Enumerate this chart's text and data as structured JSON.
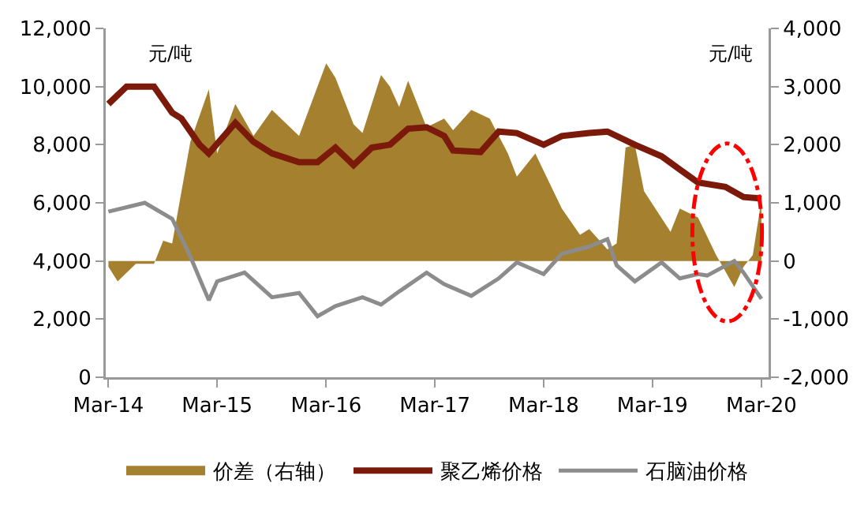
{
  "chart_data": {
    "type": "line",
    "ylabel": "元/吨",
    "y2label": "元/吨",
    "xlim": [
      "2014-02-20",
      "2020-03-25"
    ],
    "xticks": [
      {
        "value": "2014-03",
        "label": "Mar-14"
      },
      {
        "value": "2015-03",
        "label": "Mar-15"
      },
      {
        "value": "2016-03",
        "label": "Mar-16"
      },
      {
        "value": "2017-03",
        "label": "Mar-17"
      },
      {
        "value": "2018-03",
        "label": "Mar-18"
      },
      {
        "value": "2019-03",
        "label": "Mar-19"
      },
      {
        "value": "2020-03",
        "label": "Mar-20"
      }
    ],
    "ylim": [
      0,
      12000
    ],
    "yticks": [
      0,
      {
        "value": 2000,
        "label": "2,000"
      },
      {
        "value": 4000,
        "label": "4,000"
      },
      {
        "value": 6000,
        "label": "6,000"
      },
      {
        "value": 8000,
        "label": "8,000"
      },
      {
        "value": 10000,
        "label": "10,000"
      },
      {
        "value": 12000,
        "label": "12,000"
      }
    ],
    "y2lim": [
      -2000,
      4000
    ],
    "y2ticks": [
      {
        "value": -2000,
        "label": "-2,000"
      },
      {
        "value": -1000,
        "label": "-1,000"
      },
      0,
      {
        "value": 1000,
        "label": "1,000"
      },
      {
        "value": 2000,
        "label": "2,000"
      },
      {
        "value": 3000,
        "label": "3,000"
      },
      {
        "value": 4000,
        "label": "4,000"
      }
    ],
    "grid": false,
    "legend": "bottom",
    "series": [
      {
        "name": "价差（右轴）",
        "type": "area",
        "axis": "y2",
        "color": "#a5812f",
        "x": [
          "2014-03",
          "2014-04",
          "2014-06",
          "2014-08",
          "2014-09",
          "2014-10",
          "2014-12",
          "2015-02",
          "2015-03",
          "2015-05",
          "2015-07",
          "2015-09",
          "2015-12",
          "2016-03",
          "2016-04",
          "2016-06",
          "2016-07",
          "2016-09",
          "2016-10",
          "2016-11",
          "2016-12",
          "2017-01",
          "2017-02",
          "2017-04",
          "2017-05",
          "2017-07",
          "2017-09",
          "2017-11",
          "2017-12",
          "2018-02",
          "2018-05",
          "2018-07",
          "2018-08",
          "2018-10",
          "2018-11",
          "2018-12",
          "2019-01",
          "2019-02",
          "2019-05",
          "2019-06",
          "2019-08",
          "2019-10",
          "2019-12",
          "2020-01",
          "2020-02",
          "2020-03"
        ],
        "values": [
          -100,
          -350,
          -50,
          -50,
          350,
          300,
          2050,
          2950,
          1850,
          2700,
          2150,
          2600,
          2150,
          3400,
          3150,
          2350,
          2200,
          3200,
          3000,
          2650,
          3100,
          2700,
          2300,
          2450,
          2250,
          2600,
          2450,
          1850,
          1450,
          1850,
          900,
          450,
          550,
          200,
          300,
          1950,
          2000,
          1200,
          500,
          900,
          750,
          100,
          -450,
          -100,
          100,
          1050
        ]
      },
      {
        "name": "聚乙烯价格",
        "type": "line",
        "color": "#7b1a0a",
        "x": [
          "2014-03",
          "2014-05",
          "2014-08",
          "2014-10",
          "2014-11",
          "2015-01",
          "2015-02",
          "2015-05",
          "2015-07",
          "2015-09",
          "2015-12",
          "2016-02",
          "2016-04",
          "2016-06",
          "2016-08",
          "2016-10",
          "2016-12",
          "2017-02",
          "2017-04",
          "2017-05",
          "2017-08",
          "2017-10",
          "2017-12",
          "2018-03",
          "2018-05",
          "2018-08",
          "2018-10",
          "2019-01",
          "2019-04",
          "2019-06",
          "2019-08",
          "2019-11",
          "2020-01",
          "2020-03"
        ],
        "values": [
          9400,
          10000,
          10000,
          9100,
          8900,
          8000,
          7700,
          8750,
          8100,
          7700,
          7400,
          7400,
          7900,
          7300,
          7900,
          8000,
          8550,
          8600,
          8300,
          7800,
          7750,
          8450,
          8400,
          8000,
          8300,
          8400,
          8450,
          8000,
          7600,
          7150,
          6700,
          6550,
          6200,
          6150
        ]
      },
      {
        "name": "石脑油价格",
        "type": "line",
        "color": "#8c8c8c",
        "x": [
          "2014-03",
          "2014-07",
          "2014-10",
          "2014-12",
          "2015-02",
          "2015-03",
          "2015-06",
          "2015-09",
          "2015-12",
          "2016-02",
          "2016-04",
          "2016-07",
          "2016-09",
          "2016-11",
          "2017-02",
          "2017-04",
          "2017-07",
          "2017-10",
          "2017-12",
          "2018-03",
          "2018-05",
          "2018-08",
          "2018-10",
          "2018-11",
          "2019-01",
          "2019-04",
          "2019-06",
          "2019-08",
          "2019-09",
          "2019-12",
          "2020-01",
          "2020-03"
        ],
        "values": [
          5700,
          6000,
          5450,
          4150,
          2650,
          3300,
          3600,
          2750,
          2900,
          2100,
          2450,
          2750,
          2500,
          2950,
          3600,
          3200,
          2800,
          3400,
          3950,
          3550,
          4250,
          4500,
          4750,
          3850,
          3300,
          3950,
          3400,
          3550,
          3500,
          4000,
          3600,
          2700
        ]
      }
    ]
  }
}
